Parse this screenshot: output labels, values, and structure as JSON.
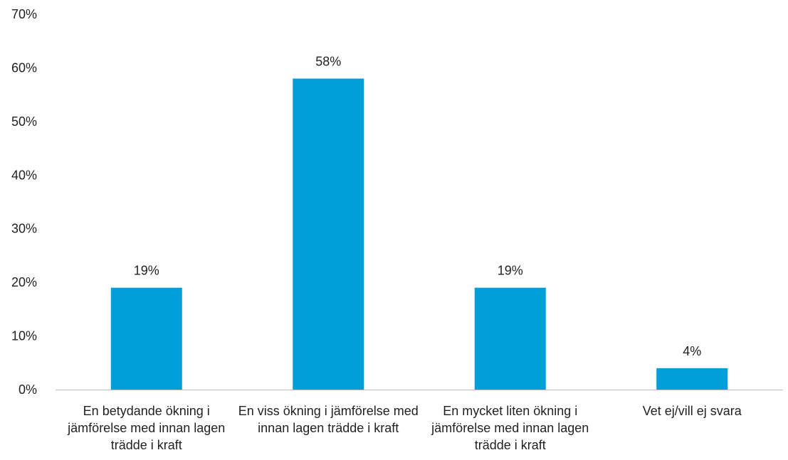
{
  "chart_data": {
    "type": "bar",
    "categories": [
      "En betydande ökning i jämförelse med innan lagen trädde i kraft",
      "En viss ökning i jämförelse med innan lagen trädde i kraft",
      "En mycket liten ökning i jämförelse med innan lagen trädde i kraft",
      "Vet ej/vill ej svara"
    ],
    "values": [
      19,
      58,
      19,
      4
    ],
    "data_labels": [
      "19%",
      "58%",
      "19%",
      "4%"
    ],
    "ylim": [
      0,
      70
    ],
    "yticks": [
      0,
      10,
      20,
      30,
      40,
      50,
      60,
      70
    ],
    "ytick_labels": [
      "0%",
      "10%",
      "20%",
      "30%",
      "40%",
      "50%",
      "60%",
      "70%"
    ],
    "title": "",
    "xlabel": "",
    "ylabel": "",
    "grid": false,
    "bar_color": "#009FDA",
    "axis_color": "#BFBFBF"
  }
}
